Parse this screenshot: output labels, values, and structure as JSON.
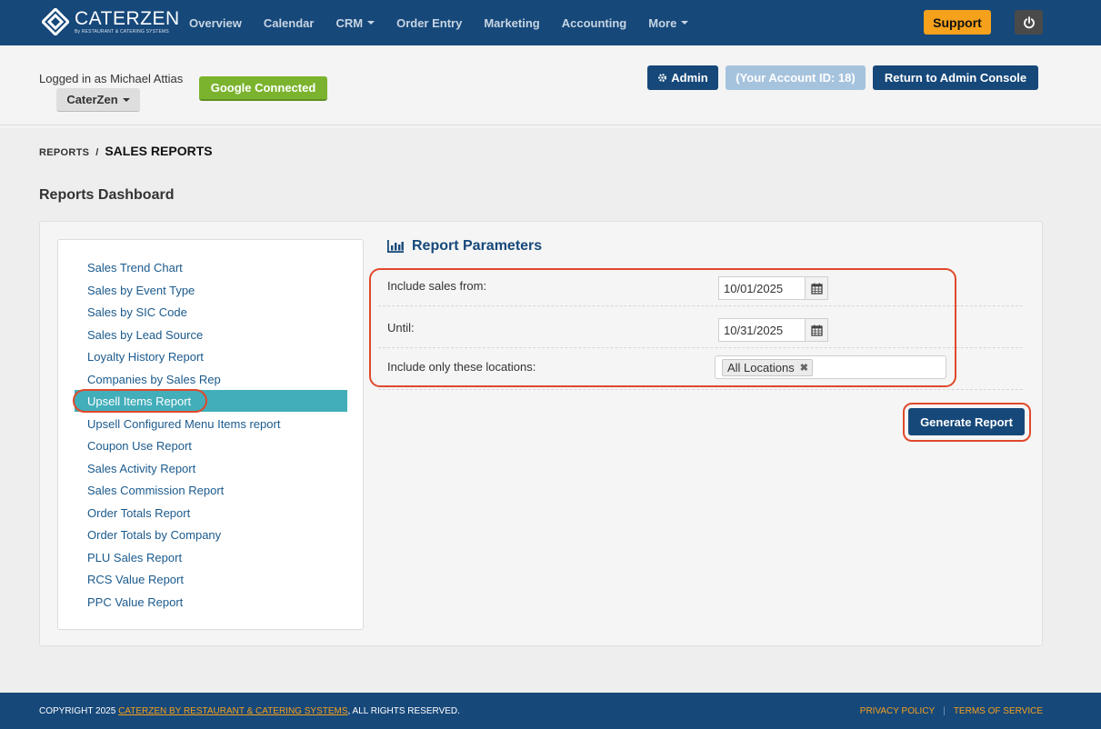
{
  "app": {
    "logo_title": "CATERZEN",
    "logo_subtitle": "By RESTAURANT & CATERING SYSTEMS"
  },
  "nav": {
    "items": [
      {
        "label": "Overview",
        "dropdown": false
      },
      {
        "label": "Calendar",
        "dropdown": false
      },
      {
        "label": "CRM",
        "dropdown": true
      },
      {
        "label": "Order Entry",
        "dropdown": false
      },
      {
        "label": "Marketing",
        "dropdown": false
      },
      {
        "label": "Accounting",
        "dropdown": false
      },
      {
        "label": "More",
        "dropdown": true
      }
    ],
    "support_label": "Support",
    "power_icon": "power-icon"
  },
  "header": {
    "logged_in_text": "Logged in as Michael Attias",
    "account_dropdown": "CaterZen",
    "google_status": "Google Connected",
    "admin_label": "Admin",
    "account_id_label": "(Your Account ID: 18)",
    "return_label": "Return to Admin Console"
  },
  "breadcrumb": {
    "parent": "REPORTS",
    "separator": "/",
    "current": "SALES REPORTS"
  },
  "page_title": "Reports Dashboard",
  "reports": {
    "items": [
      "Sales Trend Chart",
      "Sales by Event Type",
      "Sales by SIC Code",
      "Sales by Lead Source",
      "Loyalty History Report",
      "Companies by Sales Rep",
      "Upsell Items Report",
      "Upsell Configured Menu Items report",
      "Coupon Use Report",
      "Sales Activity Report",
      "Sales Commission Report",
      "Order Totals Report",
      "Order Totals by Company",
      "PLU Sales Report",
      "RCS Value Report",
      "PPC Value Report"
    ],
    "active_index": 6
  },
  "params": {
    "title": "Report Parameters",
    "from_label": "Include sales from:",
    "from_value": "10/01/2025",
    "until_label": "Until:",
    "until_value": "10/31/2025",
    "locations_label": "Include only these locations:",
    "locations_tag": "All Locations",
    "remove_glyph": "✖",
    "generate_label": "Generate Report"
  },
  "footer": {
    "copyright_prefix": "COPYRIGHT 2025",
    "copyright_link": "CATERZEN BY RESTAURANT & CATERING SYSTEMS",
    "copyright_suffix": ", ALL RIGHTS RESERVED.",
    "privacy": "PRIVACY POLICY",
    "terms": "TERMS OF SERVICE"
  },
  "colors": {
    "brand_navy": "#16487a",
    "accent_orange": "#f5a11c",
    "active_teal": "#42aeba",
    "highlight_red": "#e0492c",
    "google_green": "#7bb32e"
  }
}
